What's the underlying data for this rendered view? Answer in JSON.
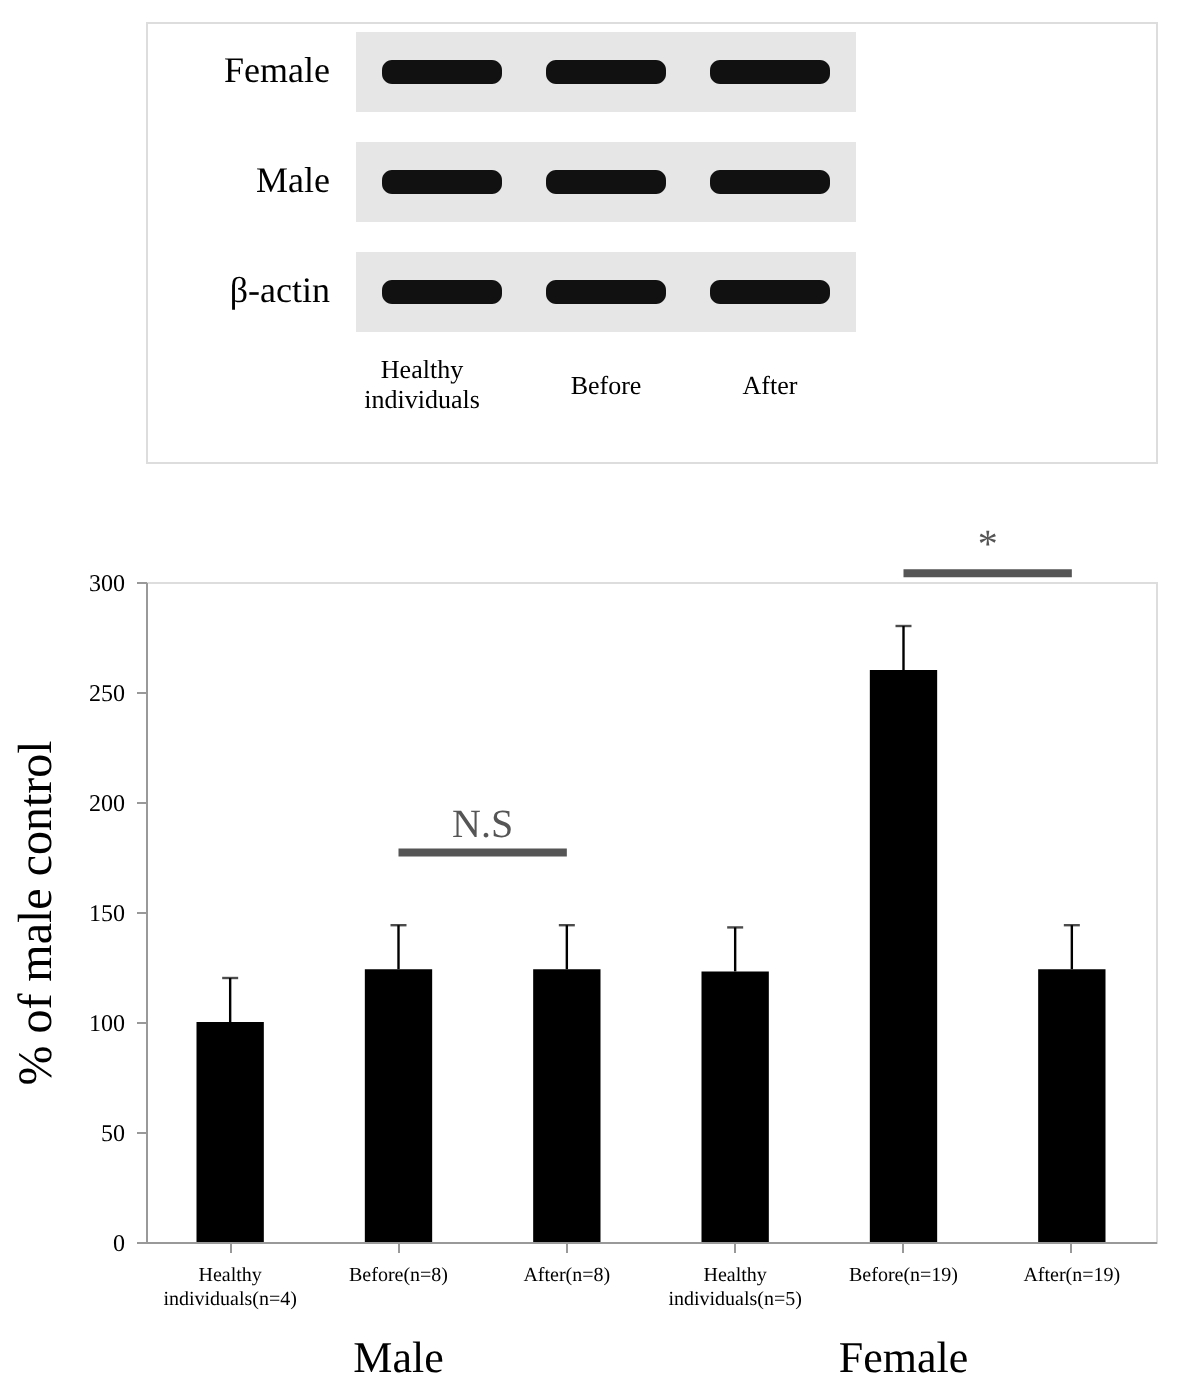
{
  "chart_data": {
    "type": "bar",
    "ylabel": "% of male control",
    "categories": [
      "Healthy individuals(n=4)",
      "Before(n=8)",
      "After(n=8)",
      "Healthy individuals(n=5)",
      "Before(n=19)",
      "After(n=19)"
    ],
    "values": [
      100,
      124,
      124,
      123,
      260,
      124
    ],
    "errors": [
      [
        100,
        120
      ],
      [
        124,
        144
      ],
      [
        124,
        144
      ],
      [
        123,
        143
      ],
      [
        260,
        280
      ],
      [
        124,
        144
      ]
    ],
    "color": "#000000",
    "ylim": [
      0,
      300
    ],
    "yticks": [
      0,
      50,
      100,
      150,
      200,
      250,
      300
    ],
    "grid": false,
    "annotations": [
      "N.S",
      "*",
      "Male",
      "Female",
      "Female",
      "Male",
      "β-actin",
      "Healthy individuals",
      "Before",
      "After"
    ]
  }
}
